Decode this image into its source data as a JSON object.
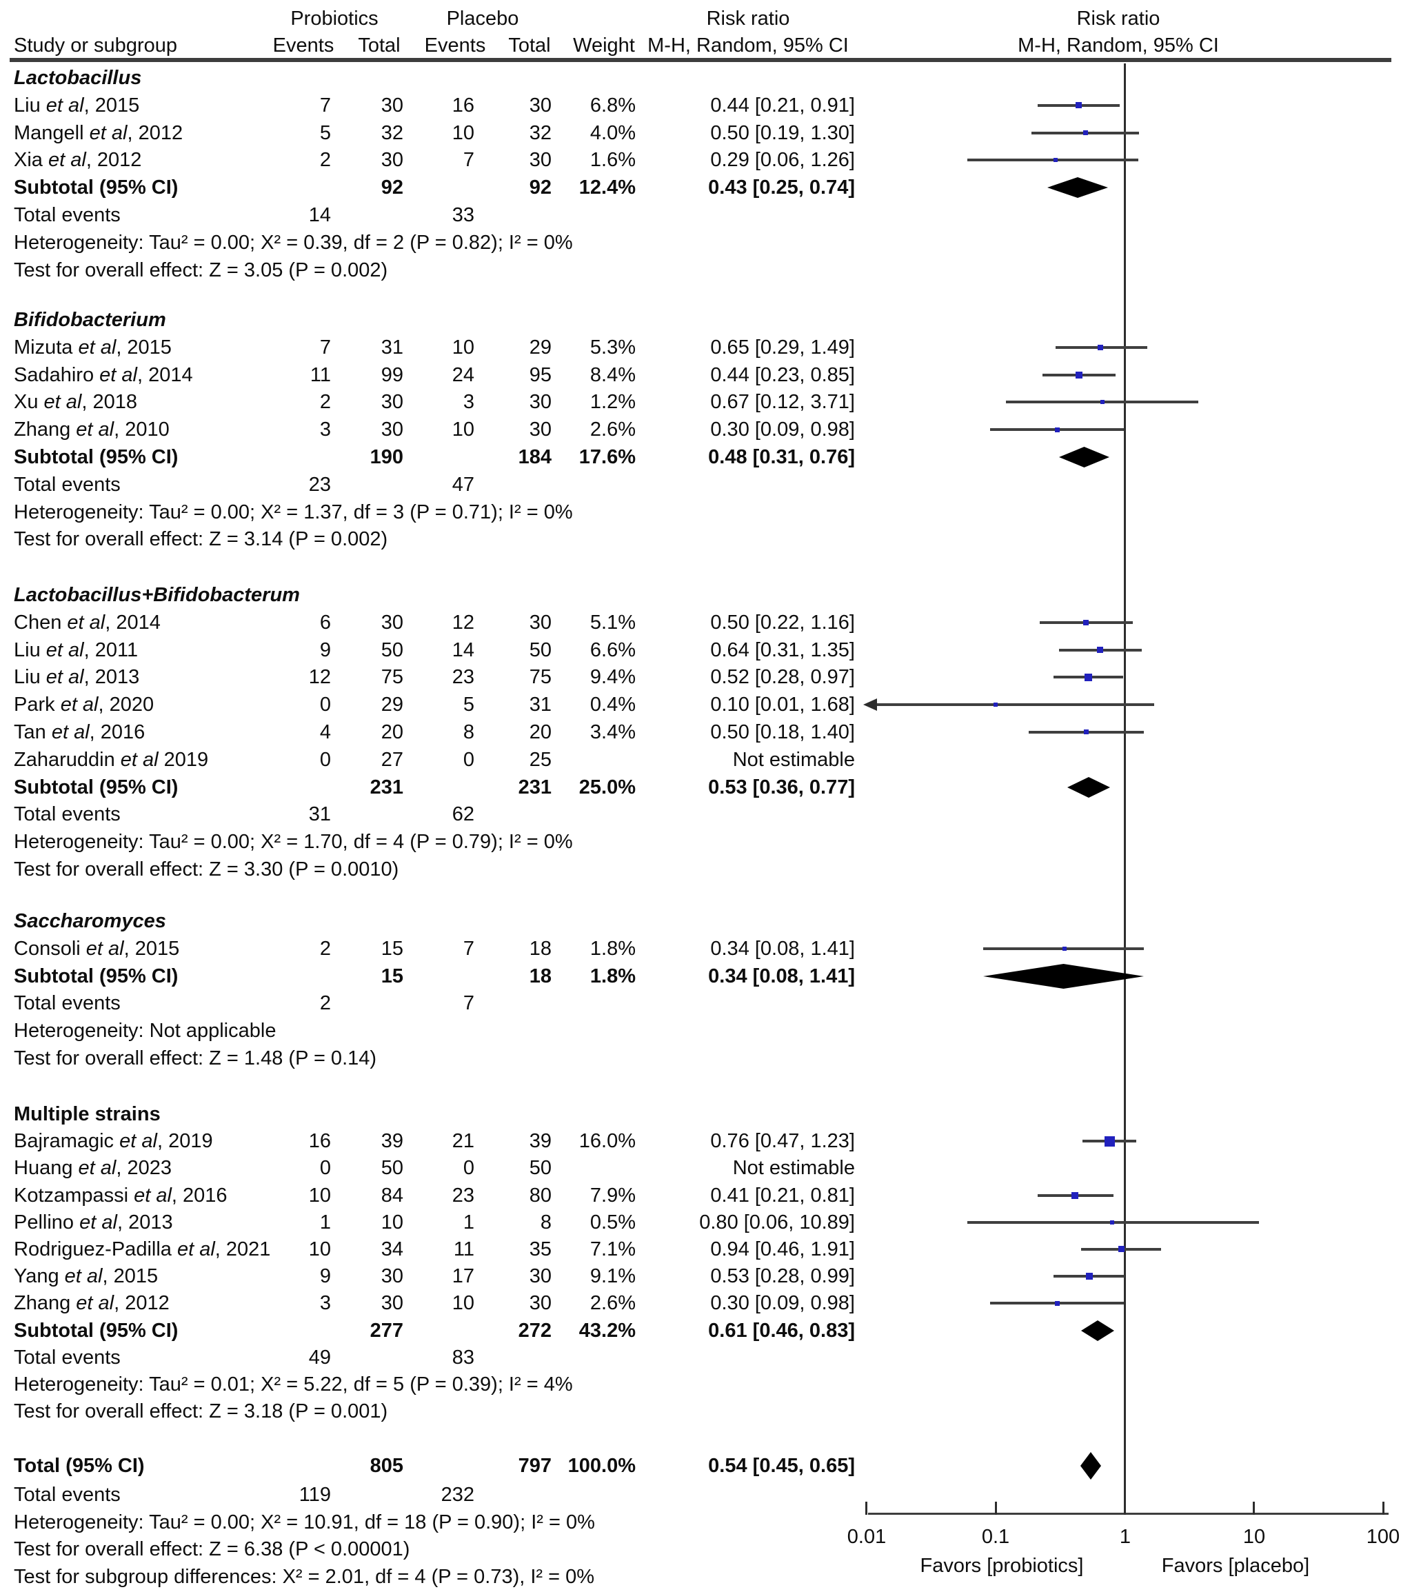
{
  "chart_data": {
    "type": "scatter",
    "variant": "forest-plot",
    "effect_measure": "Risk ratio",
    "header": {
      "study_col": "Study or subgroup",
      "group1": "Probiotics",
      "group2": "Placebo",
      "events": "Events",
      "total": "Total",
      "weight": "Weight",
      "risk_ratio": "Risk ratio",
      "method": "M-H, Random, 95% CI"
    },
    "x_axis": {
      "scale": "log",
      "range": [
        0.01,
        100
      ],
      "ticks": [
        "0.01",
        "0.1",
        "1",
        "10",
        "100"
      ],
      "favors_left": "Favors [probiotics]",
      "favors_right": "Favors [placebo]"
    },
    "colors": {
      "marker": "#2121bd",
      "ci_line": "#3f3f3f",
      "diamond": "#000000",
      "axis": "#2d2d2d",
      "rule": "#3d3d3d"
    },
    "groups": [
      {
        "name": "Lactobacillus",
        "name_style": "bold-italic",
        "studies": [
          {
            "label": "Liu et al, 2015",
            "prob_events": "7",
            "prob_total": "30",
            "plac_events": "16",
            "plac_total": "30",
            "weight": "6.8%",
            "weight_pct": 6.8,
            "rr_text": "0.44 [0.21, 0.91]",
            "rr": 0.44,
            "ci_lo": 0.21,
            "ci_hi": 0.91
          },
          {
            "label": "Mangell et al, 2012",
            "prob_events": "5",
            "prob_total": "32",
            "plac_events": "10",
            "plac_total": "32",
            "weight": "4.0%",
            "weight_pct": 4.0,
            "rr_text": "0.50 [0.19, 1.30]",
            "rr": 0.5,
            "ci_lo": 0.19,
            "ci_hi": 1.3
          },
          {
            "label": "Xia et al, 2012",
            "prob_events": "2",
            "prob_total": "30",
            "plac_events": "7",
            "plac_total": "30",
            "weight": "1.6%",
            "weight_pct": 1.6,
            "rr_text": "0.29 [0.06, 1.26]",
            "rr": 0.29,
            "ci_lo": 0.06,
            "ci_hi": 1.26
          }
        ],
        "subtotal": {
          "label": "Subtotal (95% CI)",
          "prob_total": "92",
          "plac_total": "92",
          "weight": "12.4%",
          "rr_text": "0.43 [0.25, 0.74]",
          "rr": 0.43,
          "ci_lo": 0.25,
          "ci_hi": 0.74
        },
        "total_events": {
          "label": "Total events",
          "prob": "14",
          "plac": "33"
        },
        "heterogeneity": "Heterogeneity: Tau² = 0.00; X² = 0.39, df = 2 (P = 0.82); I² = 0%",
        "test": "Test for overall effect: Z = 3.05 (P = 0.002)"
      },
      {
        "name": "Bifidobacterium",
        "name_style": "bold-italic",
        "studies": [
          {
            "label": "Mizuta et al, 2015",
            "prob_events": "7",
            "prob_total": "31",
            "plac_events": "10",
            "plac_total": "29",
            "weight": "5.3%",
            "weight_pct": 5.3,
            "rr_text": "0.65 [0.29, 1.49]",
            "rr": 0.65,
            "ci_lo": 0.29,
            "ci_hi": 1.49
          },
          {
            "label": "Sadahiro et al, 2014",
            "prob_events": "11",
            "prob_total": "99",
            "plac_events": "24",
            "plac_total": "95",
            "weight": "8.4%",
            "weight_pct": 8.4,
            "rr_text": "0.44 [0.23, 0.85]",
            "rr": 0.44,
            "ci_lo": 0.23,
            "ci_hi": 0.85
          },
          {
            "label": "Xu et al, 2018",
            "prob_events": "2",
            "prob_total": "30",
            "plac_events": "3",
            "plac_total": "30",
            "weight": "1.2%",
            "weight_pct": 1.2,
            "rr_text": "0.67 [0.12, 3.71]",
            "rr": 0.67,
            "ci_lo": 0.12,
            "ci_hi": 3.71
          },
          {
            "label": "Zhang et al, 2010",
            "prob_events": "3",
            "prob_total": "30",
            "plac_events": "10",
            "plac_total": "30",
            "weight": "2.6%",
            "weight_pct": 2.6,
            "rr_text": "0.30 [0.09, 0.98]",
            "rr": 0.3,
            "ci_lo": 0.09,
            "ci_hi": 0.98
          }
        ],
        "subtotal": {
          "label": "Subtotal (95% CI)",
          "prob_total": "190",
          "plac_total": "184",
          "weight": "17.6%",
          "rr_text": "0.48 [0.31, 0.76]",
          "rr": 0.48,
          "ci_lo": 0.31,
          "ci_hi": 0.76
        },
        "total_events": {
          "label": "Total events",
          "prob": "23",
          "plac": "47"
        },
        "heterogeneity": "Heterogeneity: Tau² = 0.00; X² = 1.37, df = 3 (P = 0.71); I² = 0%",
        "test": "Test for overall effect: Z = 3.14 (P = 0.002)"
      },
      {
        "name": "Lactobacillus+Bifidobacterum",
        "name_style": "bold-italic",
        "studies": [
          {
            "label": "Chen et al, 2014",
            "prob_events": "6",
            "prob_total": "30",
            "plac_events": "12",
            "plac_total": "30",
            "weight": "5.1%",
            "weight_pct": 5.1,
            "rr_text": "0.50 [0.22, 1.16]",
            "rr": 0.5,
            "ci_lo": 0.22,
            "ci_hi": 1.16
          },
          {
            "label": "Liu et al, 2011",
            "prob_events": "9",
            "prob_total": "50",
            "plac_events": "14",
            "plac_total": "50",
            "weight": "6.6%",
            "weight_pct": 6.6,
            "rr_text": "0.64 [0.31, 1.35]",
            "rr": 0.64,
            "ci_lo": 0.31,
            "ci_hi": 1.35
          },
          {
            "label": "Liu et al, 2013",
            "prob_events": "12",
            "prob_total": "75",
            "plac_events": "23",
            "plac_total": "75",
            "weight": "9.4%",
            "weight_pct": 9.4,
            "rr_text": "0.52 [0.28, 0.97]",
            "rr": 0.52,
            "ci_lo": 0.28,
            "ci_hi": 0.97
          },
          {
            "label": "Park et al, 2020",
            "prob_events": "0",
            "prob_total": "29",
            "plac_events": "5",
            "plac_total": "31",
            "weight": "0.4%",
            "weight_pct": 0.4,
            "rr_text": "0.10 [0.01, 1.68]",
            "rr": 0.1,
            "ci_lo": 0.01,
            "ci_hi": 1.68,
            "clip_lo": true
          },
          {
            "label": "Tan et al, 2016",
            "prob_events": "4",
            "prob_total": "20",
            "plac_events": "8",
            "plac_total": "20",
            "weight": "3.4%",
            "weight_pct": 3.4,
            "rr_text": "0.50 [0.18, 1.40]",
            "rr": 0.5,
            "ci_lo": 0.18,
            "ci_hi": 1.4
          },
          {
            "label": "Zaharuddin et al 2019",
            "prob_events": "0",
            "prob_total": "27",
            "plac_events": "0",
            "plac_total": "25",
            "weight": "",
            "weight_pct": null,
            "rr_text": "Not estimable",
            "rr": null
          }
        ],
        "subtotal": {
          "label": "Subtotal (95% CI)",
          "prob_total": "231",
          "plac_total": "231",
          "weight": "25.0%",
          "rr_text": "0.53 [0.36, 0.77]",
          "rr": 0.53,
          "ci_lo": 0.36,
          "ci_hi": 0.77
        },
        "total_events": {
          "label": "Total events",
          "prob": "31",
          "plac": "62"
        },
        "heterogeneity": "Heterogeneity: Tau² = 0.00; X² = 1.70, df = 4 (P = 0.79); I² = 0%",
        "test": "Test for overall effect: Z = 3.30 (P = 0.0010)"
      },
      {
        "name": "Saccharomyces",
        "name_style": "bold-italic",
        "studies": [
          {
            "label": "Consoli et al, 2015",
            "prob_events": "2",
            "prob_total": "15",
            "plac_events": "7",
            "plac_total": "18",
            "weight": "1.8%",
            "weight_pct": 1.8,
            "rr_text": "0.34 [0.08, 1.41]",
            "rr": 0.34,
            "ci_lo": 0.08,
            "ci_hi": 1.41
          }
        ],
        "subtotal": {
          "label": "Subtotal (95% CI)",
          "prob_total": "15",
          "plac_total": "18",
          "weight": "1.8%",
          "rr_text": "0.34 [0.08, 1.41]",
          "rr": 0.34,
          "ci_lo": 0.08,
          "ci_hi": 1.41
        },
        "total_events": {
          "label": "Total events",
          "prob": "2",
          "plac": "7"
        },
        "heterogeneity": "Heterogeneity: Not applicable",
        "test": "Test for overall effect: Z = 1.48 (P = 0.14)"
      },
      {
        "name": "Multiple strains",
        "name_style": "bold",
        "studies": [
          {
            "label": "Bajramagic et al, 2019",
            "prob_events": "16",
            "prob_total": "39",
            "plac_events": "21",
            "plac_total": "39",
            "weight": "16.0%",
            "weight_pct": 16.0,
            "rr_text": "0.76 [0.47, 1.23]",
            "rr": 0.76,
            "ci_lo": 0.47,
            "ci_hi": 1.23
          },
          {
            "label": "Huang et al, 2023",
            "prob_events": "0",
            "prob_total": "50",
            "plac_events": "0",
            "plac_total": "50",
            "weight": "",
            "weight_pct": null,
            "rr_text": "Not estimable",
            "rr": null
          },
          {
            "label": "Kotzampassi et al, 2016",
            "prob_events": "10",
            "prob_total": "84",
            "plac_events": "23",
            "plac_total": "80",
            "weight": "7.9%",
            "weight_pct": 7.9,
            "rr_text": "0.41 [0.21, 0.81]",
            "rr": 0.41,
            "ci_lo": 0.21,
            "ci_hi": 0.81
          },
          {
            "label": "Pellino et al, 2013",
            "prob_events": "1",
            "prob_total": "10",
            "plac_events": "1",
            "plac_total": "8",
            "weight": "0.5%",
            "weight_pct": 0.5,
            "rr_text": "0.80 [0.06, 10.89]",
            "rr": 0.8,
            "ci_lo": 0.06,
            "ci_hi": 10.89
          },
          {
            "label": "Rodriguez-Padilla et al, 2021",
            "prob_events": "10",
            "prob_total": "34",
            "plac_events": "11",
            "plac_total": "35",
            "weight": "7.1%",
            "weight_pct": 7.1,
            "rr_text": "0.94 [0.46, 1.91]",
            "rr": 0.94,
            "ci_lo": 0.46,
            "ci_hi": 1.91
          },
          {
            "label": "Yang et al, 2015",
            "prob_events": "9",
            "prob_total": "30",
            "plac_events": "17",
            "plac_total": "30",
            "weight": "9.1%",
            "weight_pct": 9.1,
            "rr_text": "0.53 [0.28, 0.99]",
            "rr": 0.53,
            "ci_lo": 0.28,
            "ci_hi": 0.99
          },
          {
            "label": "Zhang et al, 2012",
            "prob_events": "3",
            "prob_total": "30",
            "plac_events": "10",
            "plac_total": "30",
            "weight": "2.6%",
            "weight_pct": 2.6,
            "rr_text": "0.30 [0.09, 0.98]",
            "rr": 0.3,
            "ci_lo": 0.09,
            "ci_hi": 0.98
          }
        ],
        "subtotal": {
          "label": "Subtotal (95% CI)",
          "prob_total": "277",
          "plac_total": "272",
          "weight": "43.2%",
          "rr_text": "0.61 [0.46, 0.83]",
          "rr": 0.61,
          "ci_lo": 0.46,
          "ci_hi": 0.83
        },
        "total_events": {
          "label": "Total events",
          "prob": "49",
          "plac": "83"
        },
        "heterogeneity": "Heterogeneity: Tau² = 0.01; X² = 5.22, df = 5 (P = 0.39); I² = 4%",
        "test": "Test for overall effect: Z = 3.18 (P = 0.001)"
      }
    ],
    "total": {
      "label": "Total (95% CI)",
      "prob_total": "805",
      "plac_total": "797",
      "weight": "100.0%",
      "rr_text": "0.54 [0.45, 0.65]",
      "rr": 0.54,
      "ci_lo": 0.45,
      "ci_hi": 0.65,
      "total_events": {
        "label": "Total events",
        "prob": "119",
        "plac": "232"
      },
      "heterogeneity": "Heterogeneity: Tau² = 0.00; X² = 10.91, df = 18 (P = 0.90); I² = 0%",
      "test": "Test for overall effect: Z = 6.38 (P < 0.00001)",
      "subgroup_test": "Test for subgroup differences: X² = 2.01, df = 4 (P = 0.73), I² = 0%"
    }
  }
}
